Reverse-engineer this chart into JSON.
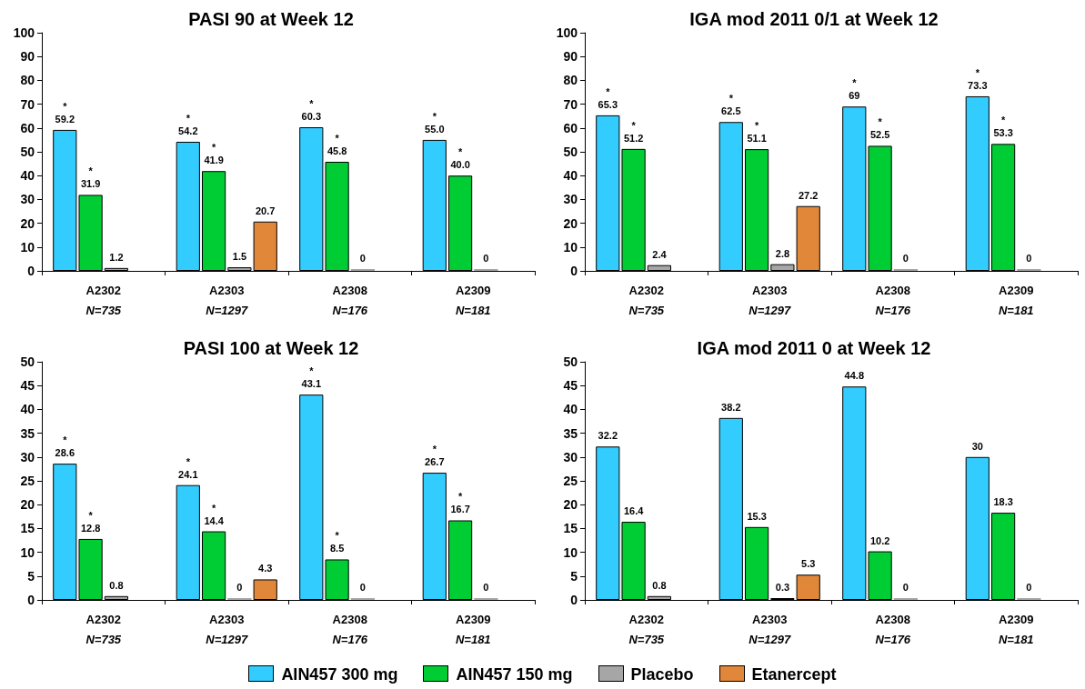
{
  "chart_data": [
    {
      "type": "bar",
      "title": "PASI 90 at Week 12",
      "categories": [
        "A2302\nN=735",
        "A2303\nN=1297",
        "A2308\nN=176",
        "A2309\nN=181"
      ],
      "ylim": [
        0,
        100
      ],
      "yticks": [
        0,
        10,
        20,
        30,
        40,
        50,
        60,
        70,
        80,
        90,
        100
      ],
      "grid": false,
      "legend": "bottom",
      "series": [
        {
          "name": "AIN457 300 mg",
          "color": "#33ccff",
          "values": [
            59.2,
            54.2,
            60.3,
            55.0
          ],
          "value_labels": [
            "*\n59.2",
            "*\n54.2",
            "*\n60.3",
            "*\n55.0"
          ]
        },
        {
          "name": "AIN457 150 mg",
          "color": "#00cc33",
          "values": [
            31.9,
            41.9,
            45.8,
            40.0
          ],
          "value_labels": [
            "*\n31.9",
            "*\n41.9",
            "*\n45.8",
            "*\n40.0"
          ]
        },
        {
          "name": "Placebo",
          "color": "#a6a6a6",
          "values": [
            1.2,
            1.5,
            0,
            0
          ],
          "value_labels": [
            "1.2",
            "1.5",
            "0",
            "0"
          ]
        },
        {
          "name": "Etanercept",
          "color": "#e0873a",
          "values": [
            null,
            20.7,
            null,
            null
          ],
          "value_labels": [
            null,
            "20.7",
            null,
            null
          ]
        }
      ]
    },
    {
      "type": "bar",
      "title": "IGA mod 2011 0/1 at Week 12",
      "categories": [
        "A2302\nN=735",
        "A2303\nN=1297",
        "A2308\nN=176",
        "A2309\nN=181"
      ],
      "ylim": [
        0,
        100
      ],
      "yticks": [
        0,
        10,
        20,
        30,
        40,
        50,
        60,
        70,
        80,
        90,
        100
      ],
      "grid": false,
      "legend": "bottom",
      "series": [
        {
          "name": "AIN457 300 mg",
          "color": "#33ccff",
          "values": [
            65.3,
            62.5,
            69,
            73.3
          ],
          "value_labels": [
            "*\n65.3",
            "*\n62.5",
            "*\n69",
            "*\n73.3"
          ]
        },
        {
          "name": "AIN457 150 mg",
          "color": "#00cc33",
          "values": [
            51.2,
            51.1,
            52.5,
            53.3
          ],
          "value_labels": [
            "*\n51.2",
            "*\n51.1",
            "*\n52.5",
            "*\n53.3"
          ]
        },
        {
          "name": "Placebo",
          "color": "#a6a6a6",
          "values": [
            2.4,
            2.8,
            0,
            0
          ],
          "value_labels": [
            "2.4",
            "2.8",
            "0",
            "0"
          ]
        },
        {
          "name": "Etanercept",
          "color": "#e0873a",
          "values": [
            null,
            27.2,
            null,
            null
          ],
          "value_labels": [
            null,
            "27.2",
            null,
            null
          ]
        }
      ]
    },
    {
      "type": "bar",
      "title": "PASI 100 at Week 12",
      "categories": [
        "A2302\nN=735",
        "A2303\nN=1297",
        "A2308\nN=176",
        "A2309\nN=181"
      ],
      "ylim": [
        0,
        50
      ],
      "yticks": [
        0,
        5,
        10,
        15,
        20,
        25,
        30,
        35,
        40,
        45,
        50
      ],
      "grid": false,
      "legend": "bottom",
      "series": [
        {
          "name": "AIN457 300 mg",
          "color": "#33ccff",
          "values": [
            28.6,
            24.1,
            43.1,
            26.7
          ],
          "value_labels": [
            "*\n28.6",
            "*\n24.1",
            "*\n43.1",
            "*\n26.7"
          ]
        },
        {
          "name": "AIN457 150 mg",
          "color": "#00cc33",
          "values": [
            12.8,
            14.4,
            8.5,
            16.7
          ],
          "value_labels": [
            "*\n12.8",
            "*\n14.4",
            "*\n8.5",
            "*\n16.7"
          ]
        },
        {
          "name": "Placebo",
          "color": "#a6a6a6",
          "values": [
            0.8,
            0,
            0,
            0
          ],
          "value_labels": [
            "0.8",
            "0",
            "0",
            "0"
          ]
        },
        {
          "name": "Etanercept",
          "color": "#e0873a",
          "values": [
            null,
            4.3,
            null,
            null
          ],
          "value_labels": [
            null,
            "4.3",
            null,
            null
          ]
        }
      ]
    },
    {
      "type": "bar",
      "title": "IGA mod 2011 0 at Week 12",
      "categories": [
        "A2302\nN=735",
        "A2303\nN=1297",
        "A2308\nN=176",
        "A2309\nN=181"
      ],
      "ylim": [
        0,
        50
      ],
      "yticks": [
        0,
        5,
        10,
        15,
        20,
        25,
        30,
        35,
        40,
        45,
        50
      ],
      "grid": false,
      "legend": "bottom",
      "series": [
        {
          "name": "AIN457 300 mg",
          "color": "#33ccff",
          "values": [
            32.2,
            38.2,
            44.8,
            30
          ],
          "value_labels": [
            "32.2",
            "38.2",
            "44.8",
            "30"
          ]
        },
        {
          "name": "AIN457 150 mg",
          "color": "#00cc33",
          "values": [
            16.4,
            15.3,
            10.2,
            18.3
          ],
          "value_labels": [
            "16.4",
            "15.3",
            "10.2",
            "18.3"
          ]
        },
        {
          "name": "Placebo",
          "color": "#a6a6a6",
          "values": [
            0.8,
            0.3,
            0,
            0
          ],
          "value_labels": [
            "0.8",
            "0.3",
            "0",
            "0"
          ]
        },
        {
          "name": "Etanercept",
          "color": "#e0873a",
          "values": [
            null,
            5.3,
            null,
            null
          ],
          "value_labels": [
            null,
            "5.3",
            null,
            null
          ]
        }
      ]
    }
  ]
}
